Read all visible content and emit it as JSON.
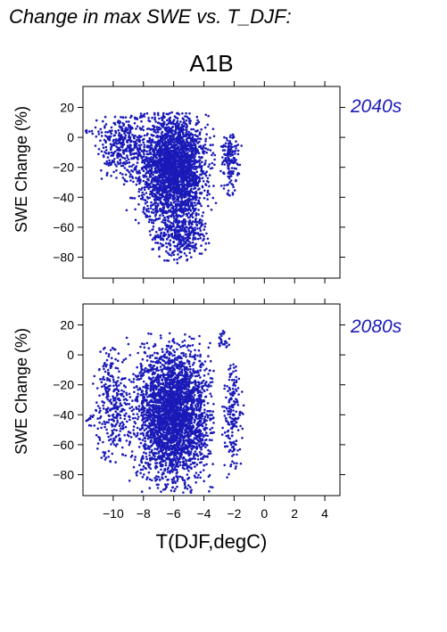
{
  "figure": {
    "title": "Change in max SWE vs. T_DJF:",
    "scenario": "A1B"
  },
  "colors": {
    "points": "#1a1ab8",
    "label": "#1a1ab8",
    "axis": "#000000"
  },
  "chart_data": [
    {
      "type": "scatter",
      "panel_label": "2040s",
      "xlabel": "",
      "ylabel": "SWE Change (%)",
      "xlim": [
        -12,
        5
      ],
      "ylim": [
        -94,
        34
      ],
      "yticks": [
        20,
        0,
        -20,
        -40,
        -60,
        -80
      ],
      "xticks": [
        -10,
        -8,
        -6,
        -4,
        -2,
        0,
        2,
        4
      ],
      "xtick_labels_shown": false,
      "grid": false,
      "clusters": [
        {
          "cx": -6.0,
          "cy": -20,
          "sx": 1.1,
          "sy": 18,
          "n": 2600,
          "xmin": -10.5,
          "xmax": -3.2,
          "ymin": -84,
          "ymax": 17
        },
        {
          "cx": -9.5,
          "cy": -5,
          "sx": 0.8,
          "sy": 12,
          "n": 350,
          "xmin": -11.2,
          "xmax": -8.0,
          "ymin": -30,
          "ymax": 15
        },
        {
          "cx": -5.5,
          "cy": -65,
          "sx": 0.9,
          "sy": 9,
          "n": 350,
          "xmin": -7.8,
          "xmax": -3.6,
          "ymin": -84,
          "ymax": -45
        },
        {
          "cx": -2.3,
          "cy": -12,
          "sx": 0.3,
          "sy": 14,
          "n": 160,
          "xmin": -2.9,
          "xmax": -1.2,
          "ymin": -40,
          "ymax": 2
        },
        {
          "cx": -11.6,
          "cy": 5,
          "sx": 0.3,
          "sy": 2,
          "n": 8,
          "xmin": -12,
          "xmax": -11.2,
          "ymin": 2,
          "ymax": 8
        }
      ]
    },
    {
      "type": "scatter",
      "panel_label": "2080s",
      "xlabel": "T(DJF,degC)",
      "ylabel": "SWE Change (%)",
      "xlim": [
        -12,
        5
      ],
      "ylim": [
        -94,
        34
      ],
      "yticks": [
        20,
        0,
        -20,
        -40,
        -60,
        -80
      ],
      "xticks": [
        -10,
        -8,
        -6,
        -4,
        -2,
        0,
        2,
        4
      ],
      "xtick_labels": [
        "−10",
        "−8",
        "−6",
        "−4",
        "−2",
        "0",
        "2",
        "4"
      ],
      "xtick_labels_shown": true,
      "grid": false,
      "clusters": [
        {
          "cx": -6.0,
          "cy": -40,
          "sx": 1.2,
          "sy": 22,
          "n": 3000,
          "xmin": -9.8,
          "xmax": -3.3,
          "ymin": -92,
          "ymax": 15
        },
        {
          "cx": -10.0,
          "cy": -30,
          "sx": 0.6,
          "sy": 22,
          "n": 300,
          "xmin": -11.4,
          "xmax": -8.5,
          "ymin": -72,
          "ymax": 5
        },
        {
          "cx": -2.1,
          "cy": -40,
          "sx": 0.3,
          "sy": 20,
          "n": 180,
          "xmin": -2.8,
          "xmax": -1.2,
          "ymin": -82,
          "ymax": -5
        },
        {
          "cx": -2.7,
          "cy": 12,
          "sx": 0.2,
          "sy": 5,
          "n": 25,
          "xmin": -3.2,
          "xmax": -2.2,
          "ymin": 4,
          "ymax": 17
        },
        {
          "cx": -11.6,
          "cy": -45,
          "sx": 0.3,
          "sy": 3,
          "n": 10,
          "xmin": -12,
          "xmax": -11.1,
          "ymin": -50,
          "ymax": -40
        }
      ]
    }
  ]
}
